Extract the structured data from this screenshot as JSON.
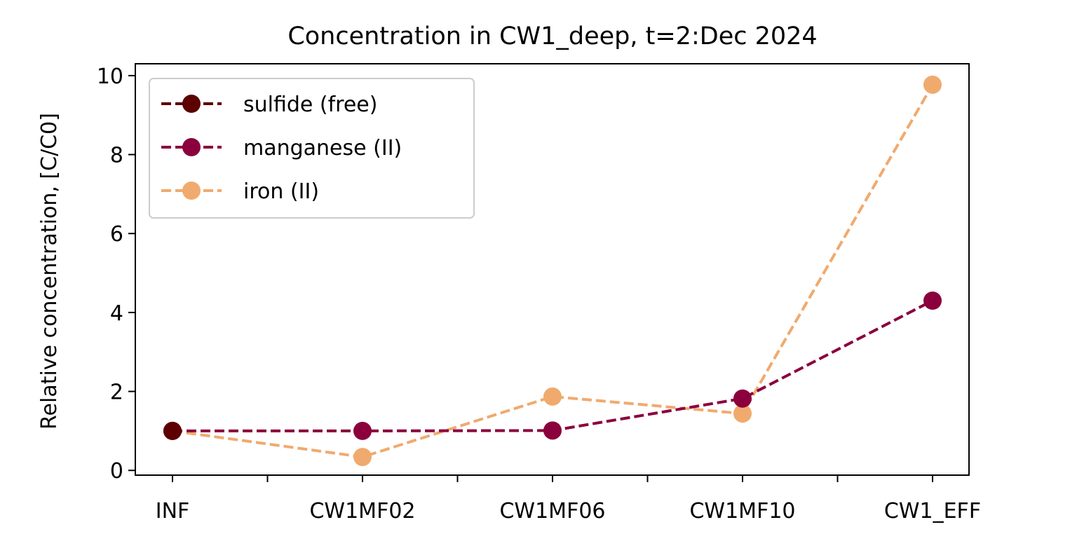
{
  "chart_data": {
    "type": "line",
    "title": "Concentration in CW1_deep, t=2:Dec 2024",
    "xlabel": "",
    "ylabel": "Relative concentration, [C/C0]",
    "categories": [
      "INF",
      "CW1MF02",
      "CW1MF06",
      "CW1MF10",
      "CW1_EFF"
    ],
    "ylim": [
      -0.12,
      10.3
    ],
    "yticks": [
      0,
      2,
      4,
      6,
      8,
      10
    ],
    "grid": false,
    "legend_position": "top-left",
    "line_style": "dashed",
    "marker": "circle",
    "series": [
      {
        "name": "sulfide (free)",
        "color": "#5c0000",
        "values": [
          1.0,
          null,
          null,
          null,
          null
        ]
      },
      {
        "name": "manganese (II)",
        "color": "#8b003c",
        "values": [
          1.0,
          1.0,
          1.01,
          1.82,
          4.3
        ]
      },
      {
        "name": "iron (II)",
        "color": "#f0aa6e",
        "values": [
          1.0,
          0.34,
          1.87,
          1.44,
          9.77
        ]
      }
    ]
  }
}
